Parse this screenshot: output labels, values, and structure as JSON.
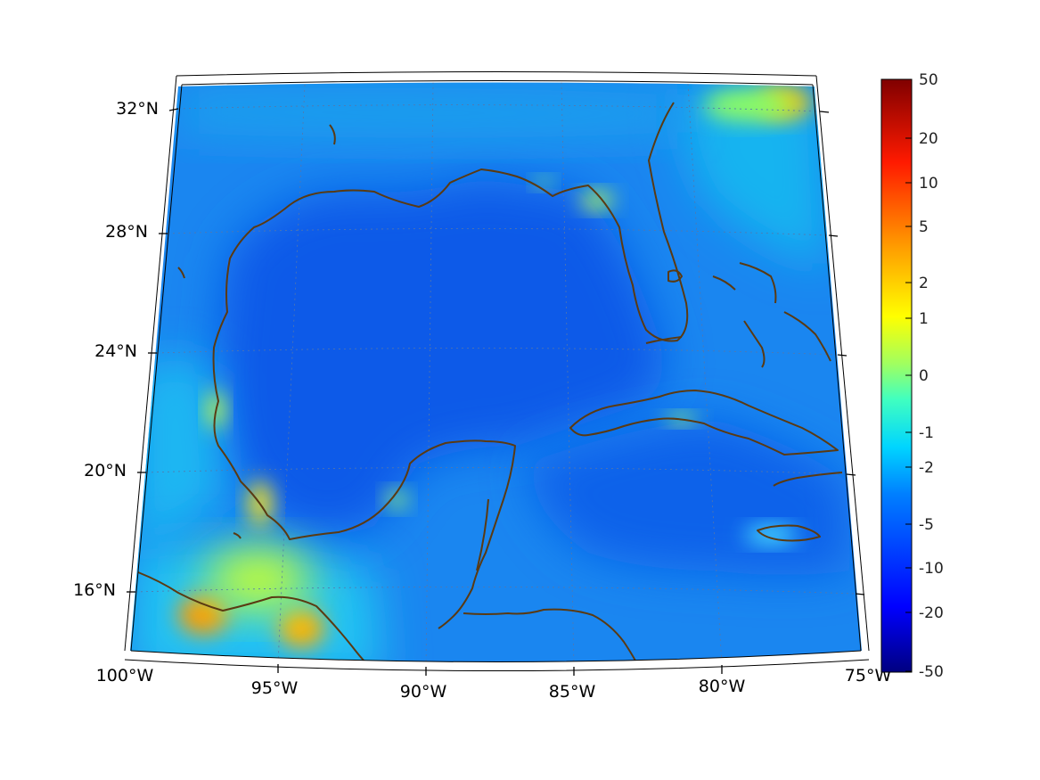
{
  "map": {
    "lon_labels": [
      "100°W",
      "95°W",
      "90°W",
      "85°W",
      "80°W",
      "75°W"
    ],
    "lat_labels": [
      "32°N",
      "28°N",
      "24°N",
      "20°N",
      "16°N"
    ],
    "extent": {
      "lon": [
        -100,
        -75
      ],
      "lat": [
        14,
        33
      ]
    },
    "projection": "conic",
    "coastline_color": "#5a3a12",
    "colormap": "jet"
  },
  "colorbar": {
    "tick_labels": [
      "50",
      "20",
      "10",
      "5",
      "2",
      "1",
      "0",
      "-1",
      "-2",
      "-5",
      "-10",
      "-20",
      "-50"
    ],
    "colors": [
      "#800000",
      "#ff0000",
      "#ff7f00",
      "#ffff00",
      "#7fff7f",
      "#00ffff",
      "#007fff",
      "#0000ff",
      "#000080"
    ]
  }
}
